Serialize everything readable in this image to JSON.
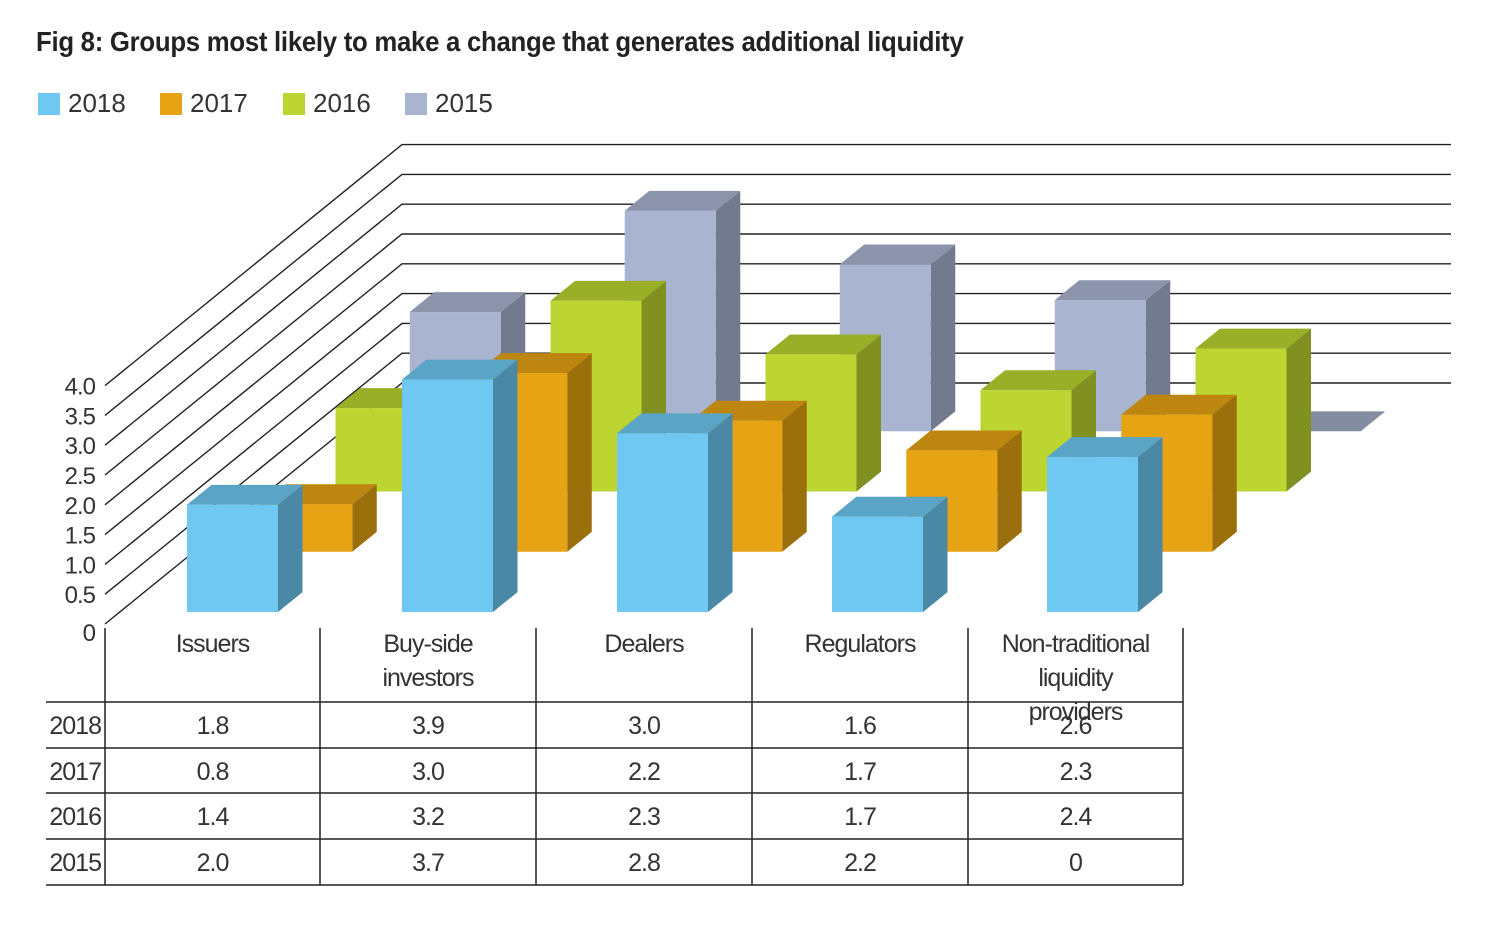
{
  "title": "Fig 8: Groups most likely to make a change that generates additional liquidity",
  "colors": {
    "2018": "#6ec8f2",
    "2017": "#e6a313",
    "2016": "#bcd531",
    "2015": "#a9b4d0"
  },
  "chart_data": {
    "type": "bar",
    "title": "Fig 8: Groups most likely to make a change that generates additional liquidity",
    "categories": [
      "Issuers",
      "Buy-side investors",
      "Dealers",
      "Regulators",
      "Non-traditional liquidity providers"
    ],
    "series": [
      {
        "name": "2018",
        "values": [
          1.8,
          3.9,
          3.0,
          1.6,
          2.6
        ]
      },
      {
        "name": "2017",
        "values": [
          0.8,
          3.0,
          2.2,
          1.7,
          2.3
        ]
      },
      {
        "name": "2016",
        "values": [
          1.4,
          3.2,
          2.3,
          1.7,
          2.4
        ]
      },
      {
        "name": "2015",
        "values": [
          2.0,
          3.7,
          2.8,
          2.2,
          0
        ]
      }
    ],
    "value_labels": [
      [
        "1.8",
        "3.9",
        "3.0",
        "1.6",
        "2.6"
      ],
      [
        "0.8",
        "3.0",
        "2.2",
        "1.7",
        "2.3"
      ],
      [
        "1.4",
        "3.2",
        "2.3",
        "1.7",
        "2.4"
      ],
      [
        "2.0",
        "3.7",
        "2.8",
        "2.2",
        "0"
      ]
    ],
    "yticks": [
      "0",
      "0.5",
      "1.0",
      "1.5",
      "2.0",
      "2.5",
      "3.0",
      "3.5",
      "4.0"
    ],
    "ylim": [
      0,
      4.0
    ],
    "legend": "top-left",
    "grid": true,
    "data_table": true
  }
}
